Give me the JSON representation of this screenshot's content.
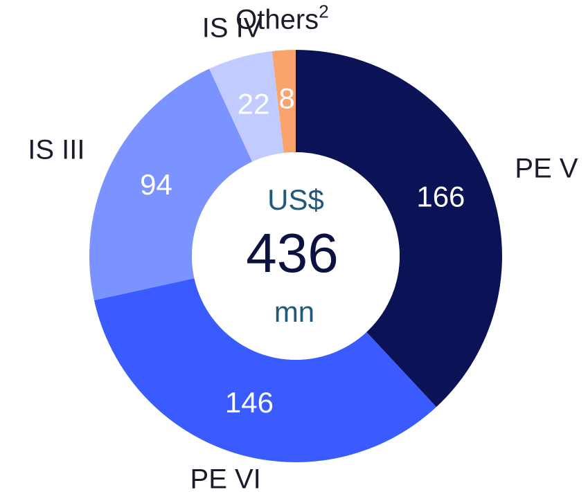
{
  "chart_data": {
    "type": "donut",
    "categories": [
      "PE V",
      "PE VI",
      "IS III",
      "IS IV",
      "Others"
    ],
    "category_superscripts": [
      null,
      null,
      null,
      null,
      "2"
    ],
    "values": [
      166,
      146,
      94,
      22,
      8
    ],
    "colors": [
      "#0b1356",
      "#3a5bff",
      "#7b93ff",
      "#c1cbff",
      "#fba36c"
    ],
    "center_label": {
      "prefix": "US$",
      "total": 436,
      "unit": "mn"
    }
  }
}
